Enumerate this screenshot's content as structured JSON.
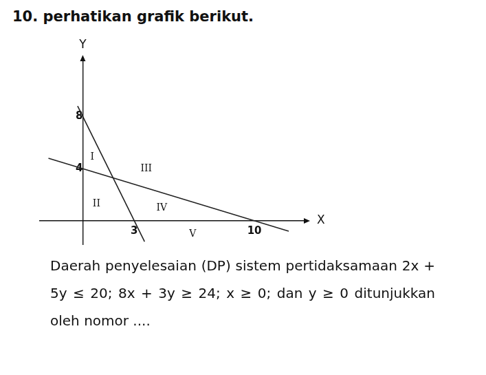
{
  "question": {
    "number": "10.",
    "heading": "perhatikan grafik berikut.",
    "text": "Daerah penyelesaian (DP) sistem pertidaksamaan 2x + 5y ≤ 20; 8x + 3y ≥ 24; x ≥ 0; dan y ≥ 0 ditunjukkan oleh nomor ...."
  },
  "chart_data": {
    "type": "line",
    "x_label": "X",
    "y_label": "Y",
    "xlim": [
      -2.5,
      13
    ],
    "ylim": [
      -1.8,
      12.4
    ],
    "xticks": [
      3,
      10
    ],
    "yticks": [
      4,
      8
    ],
    "grid": false,
    "series": [
      {
        "color": "#222222",
        "x": [
          -0.3,
          3.6
        ],
        "values": [
          8.8,
          -1.6
        ]
      },
      {
        "color": "#222222",
        "x": [
          -2,
          12
        ],
        "values": [
          4.8,
          -0.8
        ]
      }
    ],
    "annotations": [
      {
        "text": "I",
        "x": 0.55,
        "y": 4.9
      },
      {
        "text": "II",
        "x": 0.8,
        "y": 1.3
      },
      {
        "text": "III",
        "x": 3.7,
        "y": 4.0
      },
      {
        "text": "IV",
        "x": 4.6,
        "y": 1.0
      },
      {
        "text": "V",
        "x": 6.4,
        "y": -1.05
      }
    ]
  }
}
